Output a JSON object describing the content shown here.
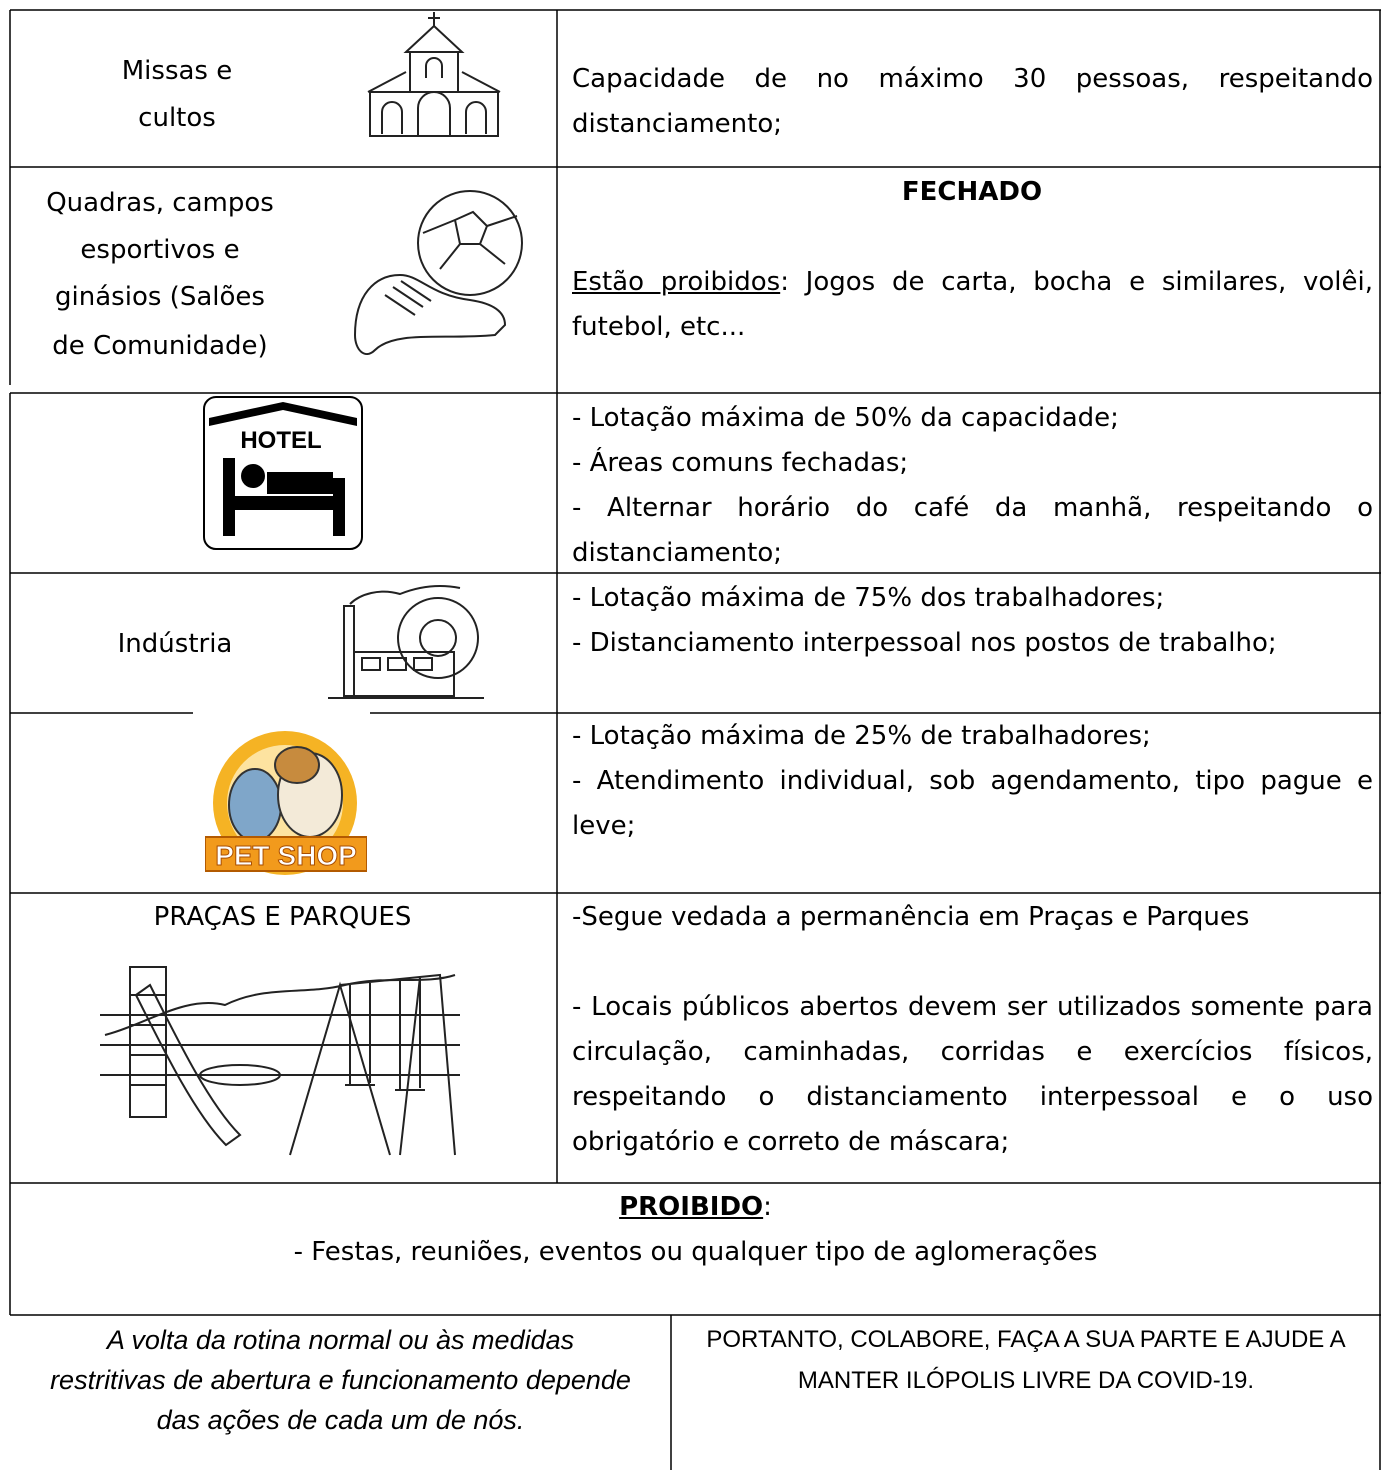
{
  "rows": [
    {
      "label": [
        "Missas e",
        "cultos"
      ],
      "text": [
        "Capacidade de no máximo 30 pessoas, respeitando distanciamento;"
      ]
    },
    {
      "label": [
        "Quadras, campos",
        "esportivos e",
        "ginásios (Salões",
        "de Comunidade)"
      ],
      "status": "FECHADO",
      "underlined": "Estão proibidos",
      "text": [
        ": Jogos de carta, bocha e similares, volêi, futebol, etc..."
      ]
    },
    {
      "icon_text": "HOTEL",
      "text": [
        "- Lotação máxima de 50% da capacidade;",
        "- Áreas comuns fechadas;",
        "- Alternar horário do café da manhã, respeitando o distanciamento;"
      ]
    },
    {
      "label": [
        "Indústria"
      ],
      "text": [
        "- Lotação máxima de 75% dos trabalhadores;",
        "- Distanciamento interpessoal nos postos de trabalho;"
      ]
    },
    {
      "icon_text": "PET SHOP",
      "text": [
        "- Lotação máxima de 25% de trabalhadores;",
        "- Atendimento individual, sob agendamento, tipo pague e leve;"
      ]
    },
    {
      "label": [
        "PRAÇAS E PARQUES"
      ],
      "text": [
        "-Segue vedada a permanência em Praças e Parques",
        "- Locais públicos abertos devem ser utilizados somente para circulação, caminhadas, corridas e exercícios físicos, respeitando o distanciamento interpessoal e o uso obrigatório e correto de máscara;"
      ]
    }
  ],
  "prohibited": {
    "title": "PROIBIDO",
    "colon": ":",
    "text": "- Festas, reuniões, eventos ou qualquer tipo de aglomerações"
  },
  "footer": {
    "left": [
      "A volta da rotina normal ou às medidas",
      "restritivas de abertura e funcionamento depende",
      "das ações de cada um de nós."
    ],
    "right": [
      "PORTANTO, COLABORE, FAÇA A SUA PARTE E AJUDE A",
      "MANTER ILÓPOLIS LIVRE DA COVID-19."
    ]
  }
}
